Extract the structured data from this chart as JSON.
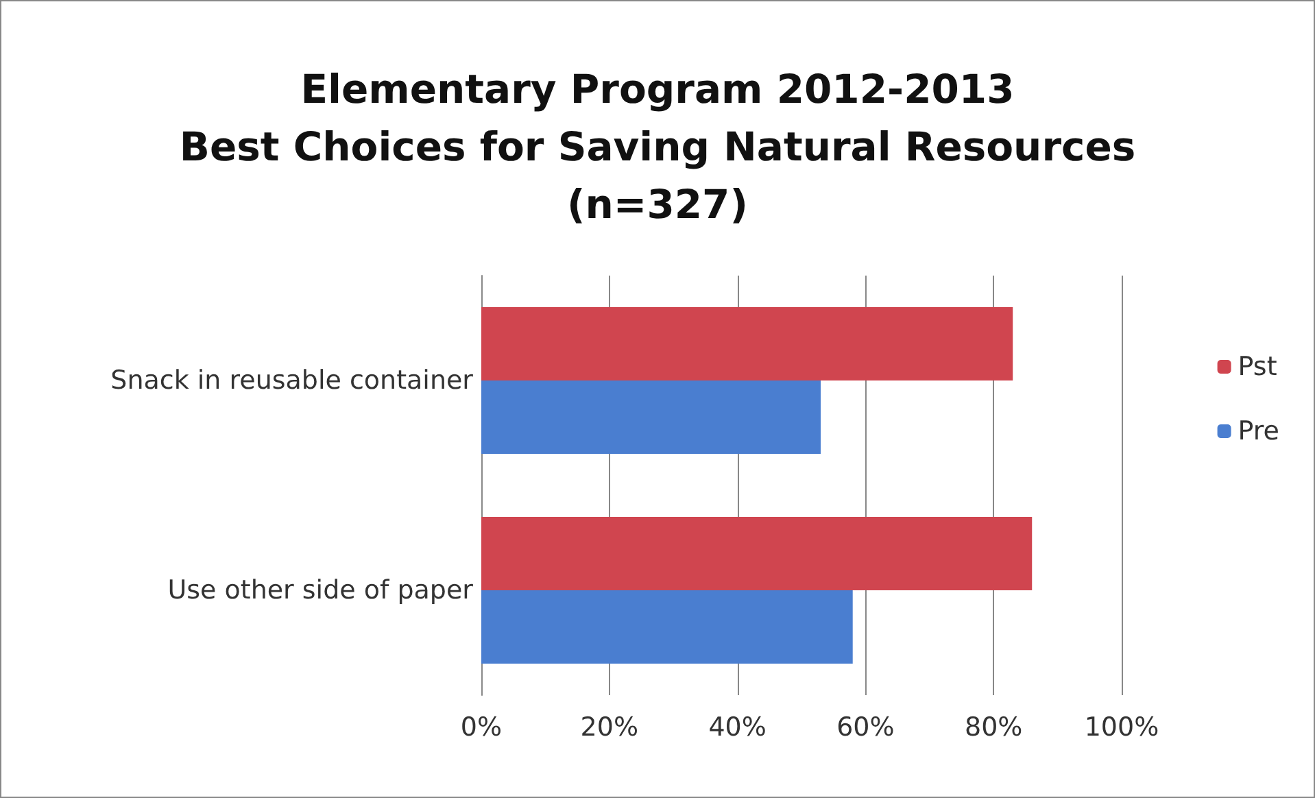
{
  "chart_data": {
    "type": "bar",
    "orientation": "horizontal",
    "title": "Elementary Program 2012-2013\nBest Choices for Saving Natural Resources\n(n=327)",
    "categories": [
      "Snack in reusable container",
      "Use other side of paper"
    ],
    "series": [
      {
        "name": "Pst",
        "color": "#d0454f",
        "values": [
          83,
          86
        ]
      },
      {
        "name": "Pre",
        "color": "#4a7ed0",
        "values": [
          53,
          58
        ]
      }
    ],
    "xlim": [
      0,
      100
    ],
    "xticks": [
      {
        "value": 0,
        "label": "0%"
      },
      {
        "value": 20,
        "label": "20%"
      },
      {
        "value": 40,
        "label": "40%"
      },
      {
        "value": 60,
        "label": "60%"
      },
      {
        "value": 80,
        "label": "80%"
      },
      {
        "value": 100,
        "label": "100%"
      }
    ],
    "grid": "x",
    "legend": "right"
  }
}
